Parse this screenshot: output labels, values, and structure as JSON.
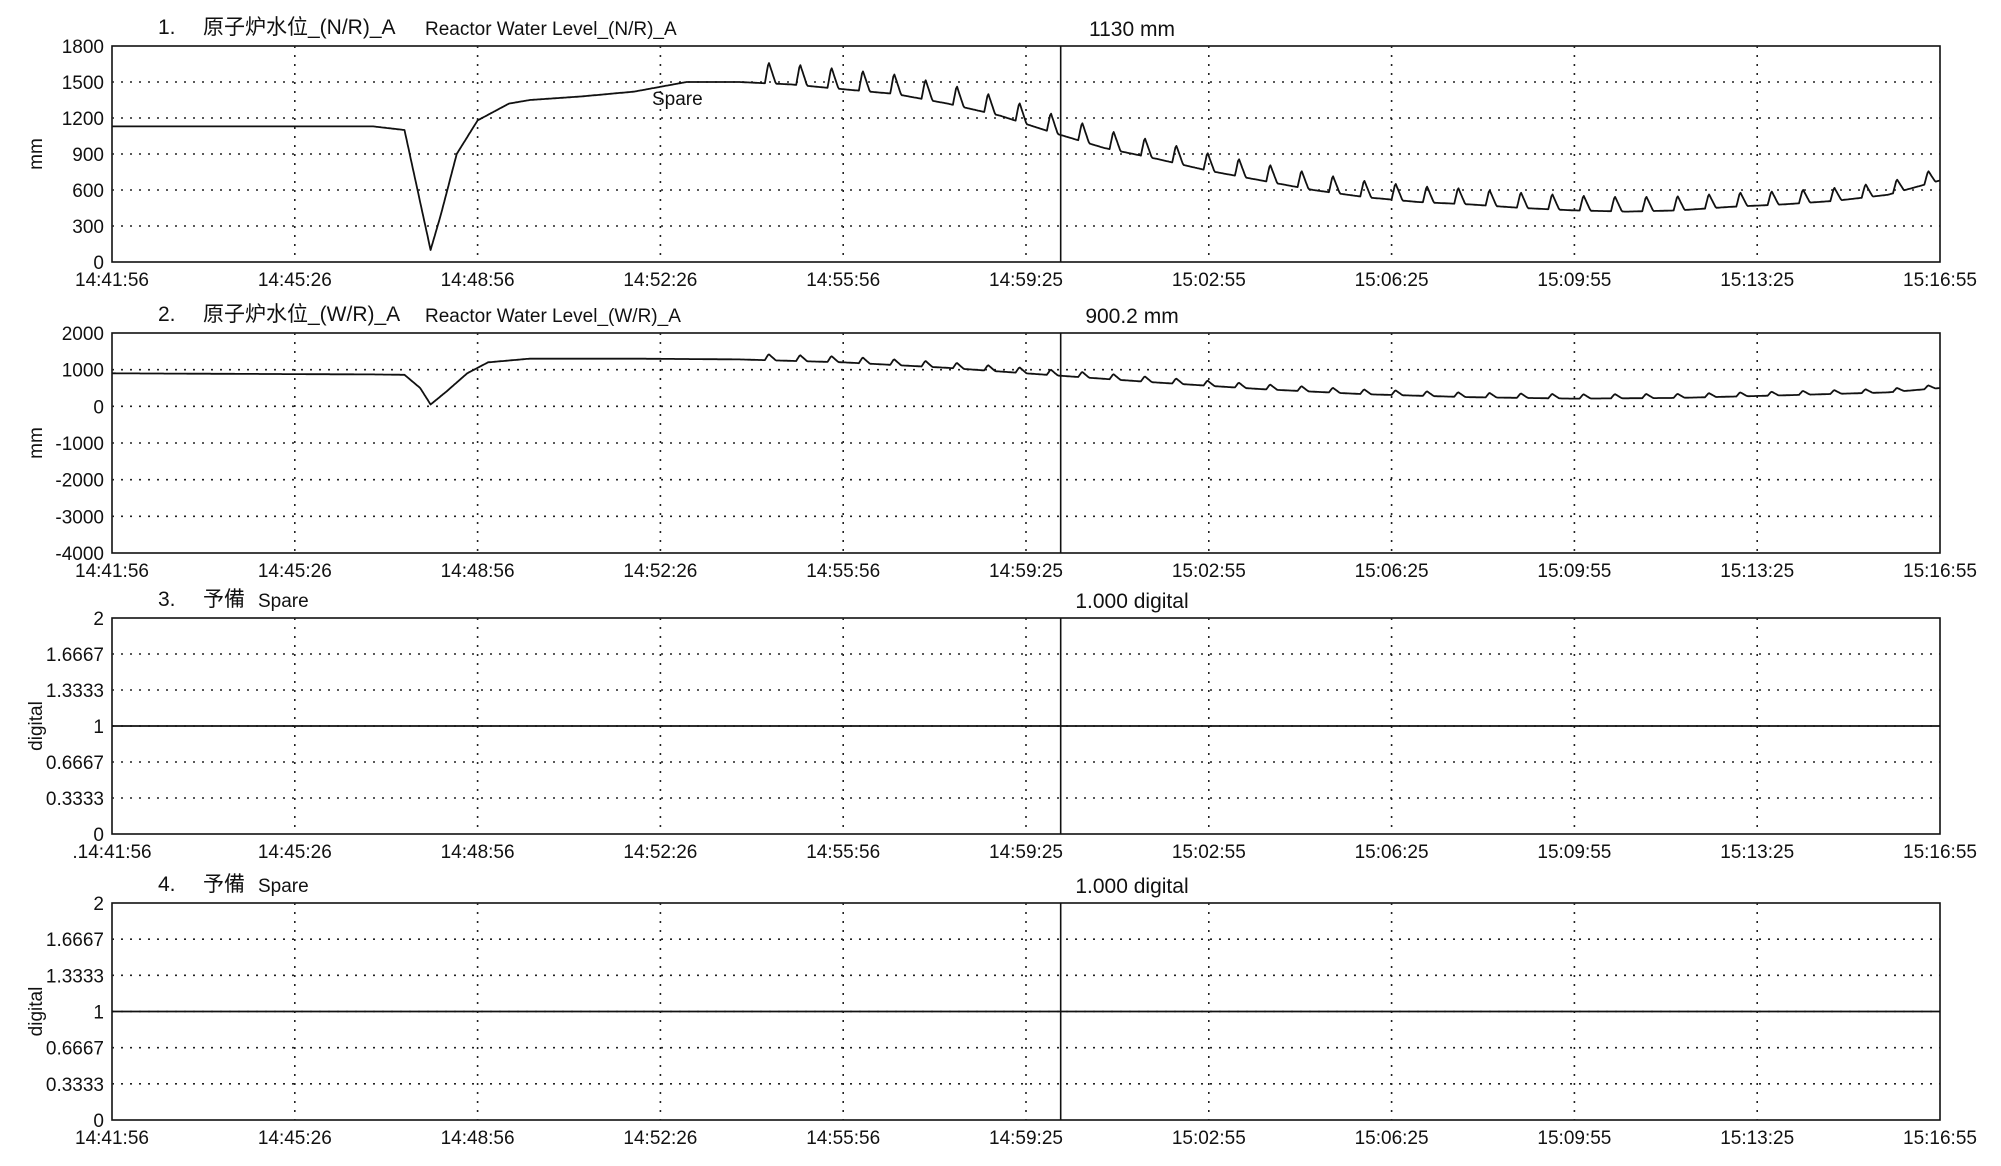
{
  "colors": {
    "line": "#111111",
    "grid": "#222222",
    "background": "#ffffff"
  },
  "chart_data": [
    {
      "type": "line",
      "index_label": "1.",
      "title": "原子炉水位_(N/R)_A",
      "subtitle": "Reactor Water Level_(N/R)_A",
      "readout": "1130 mm",
      "annotation": "Spare",
      "ylabel": "mm",
      "ylim": [
        0,
        1800
      ],
      "yticks": [
        "1800",
        "1500",
        "1200",
        "900",
        "600",
        "300",
        "0"
      ],
      "xticks": [
        "14:41:56",
        "14:45:26",
        "14:48:56",
        "14:52:26",
        "14:55:56",
        "14:59:25",
        "15:02:55",
        "15:06:25",
        "15:09:55",
        "15:13:25",
        "15:16:55"
      ],
      "grid": "dotted",
      "series": [
        {
          "x_minutes": [
            0,
            5,
            5.6,
            5.9,
            6.1,
            6.3,
            6.6,
            7,
            7.6,
            8,
            9,
            10,
            10.5,
            11,
            11.5,
            12,
            13,
            14,
            15,
            16,
            17,
            18,
            19,
            20,
            21,
            22,
            23,
            24,
            25,
            26,
            27,
            28,
            29,
            30,
            31,
            32,
            33,
            34,
            35
          ],
          "values": [
            1130,
            1130,
            1100,
            500,
            100,
            400,
            900,
            1180,
            1320,
            1350,
            1380,
            1420,
            1460,
            1500,
            1500,
            1500,
            1480,
            1440,
            1400,
            1320,
            1220,
            1080,
            950,
            860,
            760,
            680,
            600,
            540,
            500,
            480,
            450,
            430,
            420,
            430,
            460,
            480,
            510,
            560,
            680
          ],
          "spike_start_min": 12.5,
          "spike_period_min": 0.6,
          "spike_height": 180
        }
      ]
    },
    {
      "type": "line",
      "index_label": "2.",
      "title": "原子炉水位_(W/R)_A",
      "subtitle": "Reactor Water Level_(W/R)_A",
      "readout": "900.2 mm",
      "ylabel": "mm",
      "ylim": [
        -4000,
        2000
      ],
      "yticks": [
        "2000",
        "1000",
        "0",
        "-1000",
        "-2000",
        "-3000",
        "-4000"
      ],
      "xticks": [
        "14:41:56",
        "14:45:26",
        "14:48:56",
        "14:52:26",
        "14:55:56",
        "14:59:25",
        "15:02:55",
        "15:06:25",
        "15:09:55",
        "15:13:25",
        "15:16:55"
      ],
      "grid": "dotted",
      "series": [
        {
          "x_minutes": [
            0,
            5,
            5.6,
            5.9,
            6.1,
            6.4,
            6.8,
            7.2,
            8,
            10,
            12,
            14,
            16,
            18,
            20,
            22,
            24,
            26,
            28,
            30,
            32,
            34,
            35
          ],
          "values": [
            900,
            870,
            860,
            500,
            50,
            400,
            900,
            1200,
            1300,
            1300,
            1280,
            1200,
            1050,
            850,
            650,
            470,
            330,
            250,
            210,
            230,
            300,
            380,
            500
          ],
          "spike_start_min": 12.5,
          "spike_period_min": 0.6,
          "spike_height": 170
        }
      ]
    },
    {
      "type": "line",
      "index_label": "3.",
      "title": "予備",
      "subtitle": "Spare",
      "readout": "1.000 digital",
      "ylabel": "digital",
      "ylim": [
        0,
        2
      ],
      "yticks": [
        "2",
        "1.6667",
        "1.3333",
        "1",
        "0.6667",
        "0.3333",
        "0"
      ],
      "xticks": [
        ".14:41:56",
        "14:45:26",
        "14:48:56",
        "14:52:26",
        "14:55:56",
        "14:59:25",
        "15:02:55",
        "15:06:25",
        "15:09:55",
        "15:13:25",
        "15:16:55"
      ],
      "grid": "dotted",
      "series": [
        {
          "x_minutes": [
            0,
            35
          ],
          "values": [
            1,
            1
          ]
        }
      ]
    },
    {
      "type": "line",
      "index_label": "4.",
      "title": "予備",
      "subtitle": "Spare",
      "readout": "1.000 digital",
      "ylabel": "digital",
      "ylim": [
        0,
        2
      ],
      "yticks": [
        "2",
        "1.6667",
        "1.3333",
        "1",
        "0.6667",
        "0.3333",
        "0"
      ],
      "xticks": [
        "14:41:56",
        "14:45:26",
        "14:48:56",
        "14:52:26",
        "14:55:56",
        "14:59:25",
        "15:02:55",
        "15:06:25",
        "15:09:55",
        "15:13:25",
        "15:16:55"
      ],
      "grid": "dotted",
      "series": [
        {
          "x_minutes": [
            0,
            35
          ],
          "values": [
            1,
            1
          ]
        }
      ]
    }
  ]
}
